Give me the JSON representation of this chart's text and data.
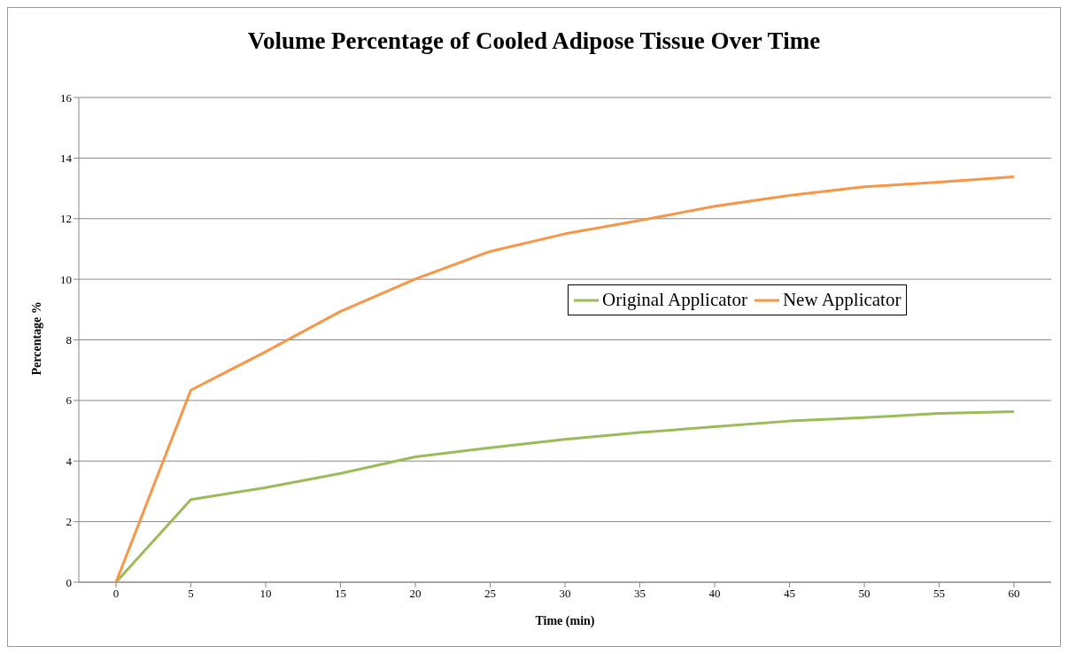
{
  "chart_data": {
    "type": "line",
    "title": "Volume Percentage of Cooled Adipose Tissue Over Time",
    "xlabel": "Time (min)",
    "ylabel": "Percentage %",
    "categories": [
      "0",
      "5",
      "10",
      "15",
      "20",
      "25",
      "30",
      "35",
      "40",
      "45",
      "50",
      "55",
      "60"
    ],
    "series": [
      {
        "name": "Original Applicator",
        "color": "#9bbb59",
        "values": [
          0,
          2.73,
          3.12,
          3.59,
          4.14,
          4.44,
          4.72,
          4.94,
          5.13,
          5.32,
          5.43,
          5.57,
          5.63
        ]
      },
      {
        "name": "New Applicator",
        "color": "#f79646",
        "values": [
          0,
          6.34,
          7.61,
          8.94,
          10.01,
          10.92,
          11.5,
          11.94,
          12.41,
          12.77,
          13.05,
          13.21,
          13.38
        ]
      }
    ],
    "ylim": [
      0,
      16
    ],
    "yticks": [
      0,
      2,
      4,
      6,
      8,
      10,
      12,
      14,
      16
    ],
    "grid": "y",
    "legend": "right",
    "marker": "none",
    "line_style": "solid"
  }
}
